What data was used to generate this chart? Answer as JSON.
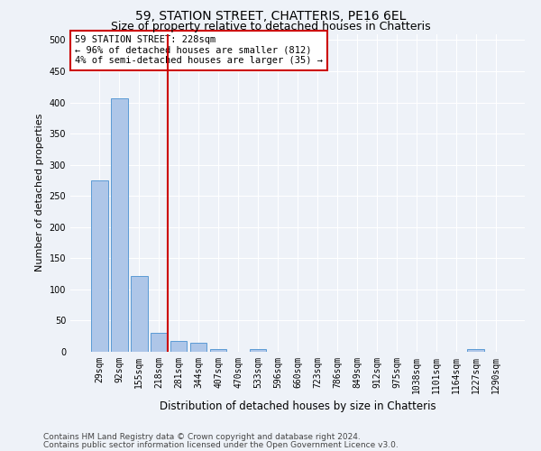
{
  "title1": "59, STATION STREET, CHATTERIS, PE16 6EL",
  "title2": "Size of property relative to detached houses in Chatteris",
  "xlabel": "Distribution of detached houses by size in Chatteris",
  "ylabel": "Number of detached properties",
  "categories": [
    "29sqm",
    "92sqm",
    "155sqm",
    "218sqm",
    "281sqm",
    "344sqm",
    "407sqm",
    "470sqm",
    "533sqm",
    "596sqm",
    "660sqm",
    "723sqm",
    "786sqm",
    "849sqm",
    "912sqm",
    "975sqm",
    "1038sqm",
    "1101sqm",
    "1164sqm",
    "1227sqm",
    "1290sqm"
  ],
  "values": [
    275,
    407,
    122,
    30,
    18,
    15,
    5,
    0,
    5,
    0,
    0,
    0,
    0,
    0,
    0,
    0,
    0,
    0,
    0,
    5,
    0
  ],
  "bar_color": "#aec6e8",
  "bar_edge_color": "#5b9bd5",
  "red_line_index": 3,
  "annotation_line1": "59 STATION STREET: 228sqm",
  "annotation_line2": "← 96% of detached houses are smaller (812)",
  "annotation_line3": "4% of semi-detached houses are larger (35) →",
  "annotation_box_color": "#ffffff",
  "annotation_box_edge": "#cc0000",
  "ylim": [
    0,
    510
  ],
  "yticks": [
    0,
    50,
    100,
    150,
    200,
    250,
    300,
    350,
    400,
    450,
    500
  ],
  "footer1": "Contains HM Land Registry data © Crown copyright and database right 2024.",
  "footer2": "Contains public sector information licensed under the Open Government Licence v3.0.",
  "bg_color": "#eef2f8",
  "grid_color": "#ffffff",
  "title1_fontsize": 10,
  "title2_fontsize": 9,
  "annotation_fontsize": 7.5,
  "ylabel_fontsize": 8,
  "xlabel_fontsize": 8.5,
  "footer_fontsize": 6.5,
  "tick_fontsize": 7
}
